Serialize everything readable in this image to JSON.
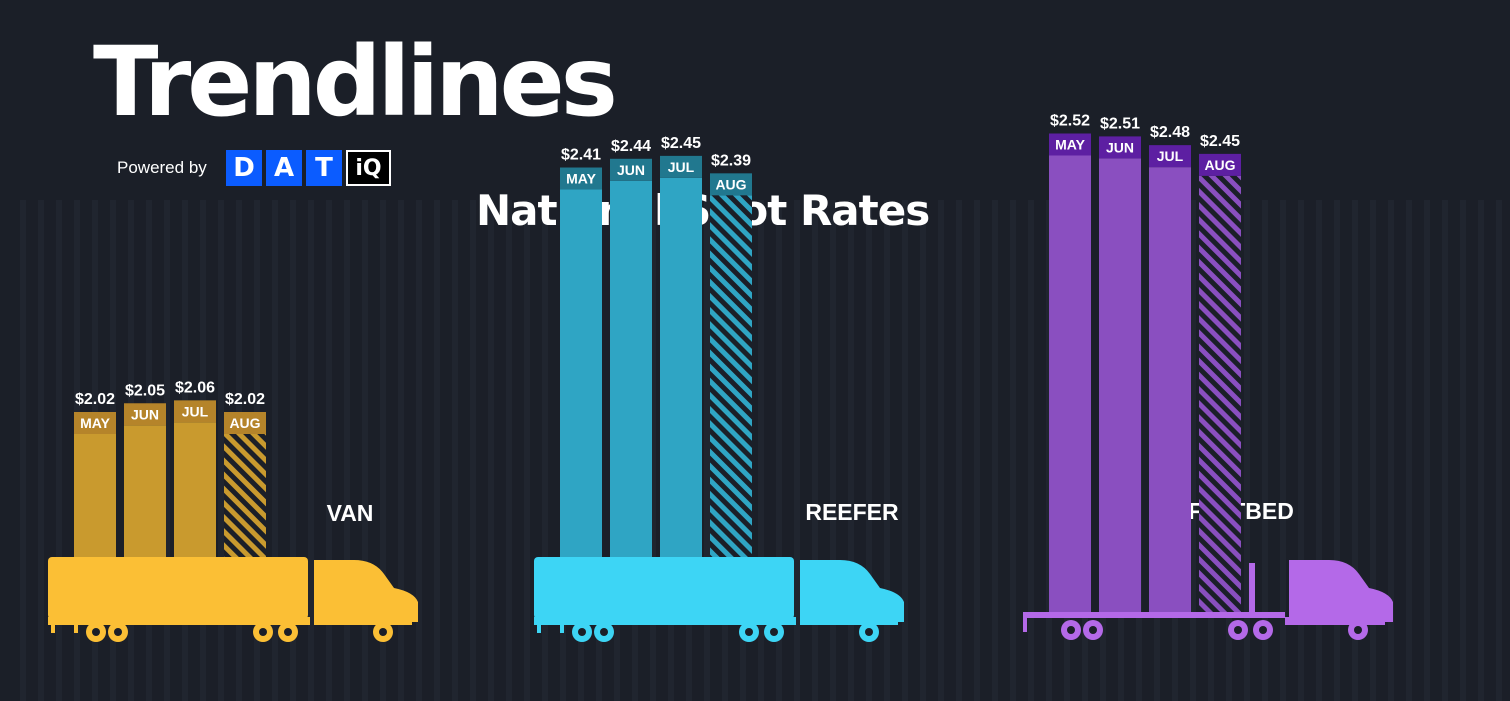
{
  "header": {
    "title": "Trendlines",
    "powered_by": "Powered by",
    "logo_letters": [
      "D",
      "A",
      "T"
    ],
    "logo_suffix": "iQ",
    "subtitle": "National Spot Rates"
  },
  "colors": {
    "background": "#1b1f28",
    "van_bar": "#c99a2e",
    "van_header": "#b5842a",
    "van_truck": "#fbbf35",
    "reefer_bar": "#2fa5c4",
    "reefer_header": "#21788f",
    "reefer_truck": "#3dd5f5",
    "flatbed_bar": "#8a4fc0",
    "flatbed_header": "#5d1fa2",
    "flatbed_truck": "#b469e8",
    "logo_blue": "#0b5cff"
  },
  "chart_data": [
    {
      "type": "bar",
      "equipment": "VAN",
      "categories": [
        "MAY",
        "JUN",
        "JUL",
        "AUG"
      ],
      "values": [
        2.02,
        2.05,
        2.06,
        2.02
      ],
      "value_labels": [
        "$2.02",
        "$2.05",
        "$2.06",
        "$2.02"
      ],
      "hatched": [
        false,
        false,
        false,
        true
      ]
    },
    {
      "type": "bar",
      "equipment": "REEFER",
      "categories": [
        "MAY",
        "JUN",
        "JUL",
        "AUG"
      ],
      "values": [
        2.41,
        2.44,
        2.45,
        2.39
      ],
      "value_labels": [
        "$2.41",
        "$2.44",
        "$2.45",
        "$2.39"
      ],
      "hatched": [
        false,
        false,
        false,
        true
      ]
    },
    {
      "type": "bar",
      "equipment": "FLATBED",
      "categories": [
        "MAY",
        "JUN",
        "JUL",
        "AUG"
      ],
      "values": [
        2.52,
        2.51,
        2.48,
        2.45
      ],
      "value_labels": [
        "$2.52",
        "$2.51",
        "$2.48",
        "$2.45"
      ],
      "hatched": [
        false,
        false,
        false,
        true
      ]
    }
  ]
}
